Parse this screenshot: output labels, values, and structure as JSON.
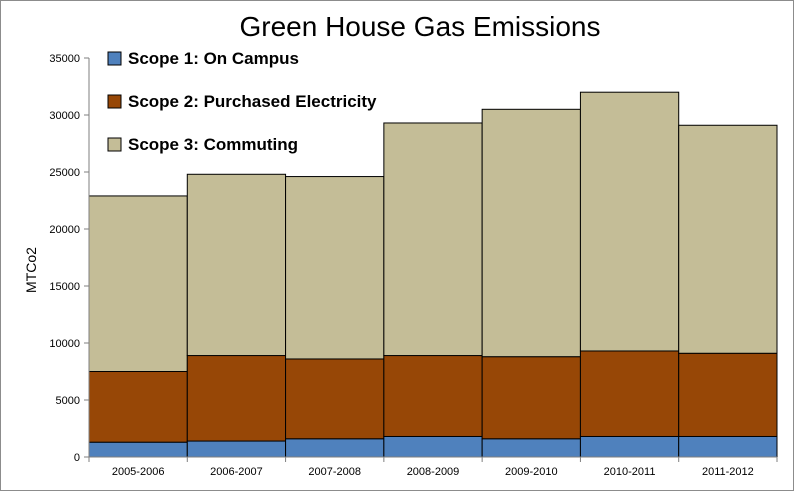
{
  "chart_data": {
    "type": "bar",
    "stacked": true,
    "title": "Green House Gas Emissions",
    "xlabel": "",
    "ylabel": "MTCo2",
    "ylim": [
      0,
      35000
    ],
    "yticks": [
      0,
      5000,
      10000,
      15000,
      20000,
      25000,
      30000,
      35000
    ],
    "grid": false,
    "legend": "top-left",
    "categories": [
      "2005-2006",
      "2006-2007",
      "2007-2008",
      "2008-2009",
      "2009-2010",
      "2010-2011",
      "2011-2012"
    ],
    "series": [
      {
        "name": "Scope 1: On Campus",
        "color": "#4f81bd",
        "values": [
          1300,
          1400,
          1600,
          1800,
          1600,
          1800,
          1800
        ]
      },
      {
        "name": "Scope 2: Purchased Electricity",
        "color": "#974706",
        "values": [
          6200,
          7500,
          7000,
          7100,
          7200,
          7500,
          7300
        ]
      },
      {
        "name": "Scope 3: Commuting",
        "color": "#c4bd97",
        "values": [
          15400,
          15900,
          16000,
          20400,
          21700,
          22700,
          20000
        ]
      }
    ]
  }
}
